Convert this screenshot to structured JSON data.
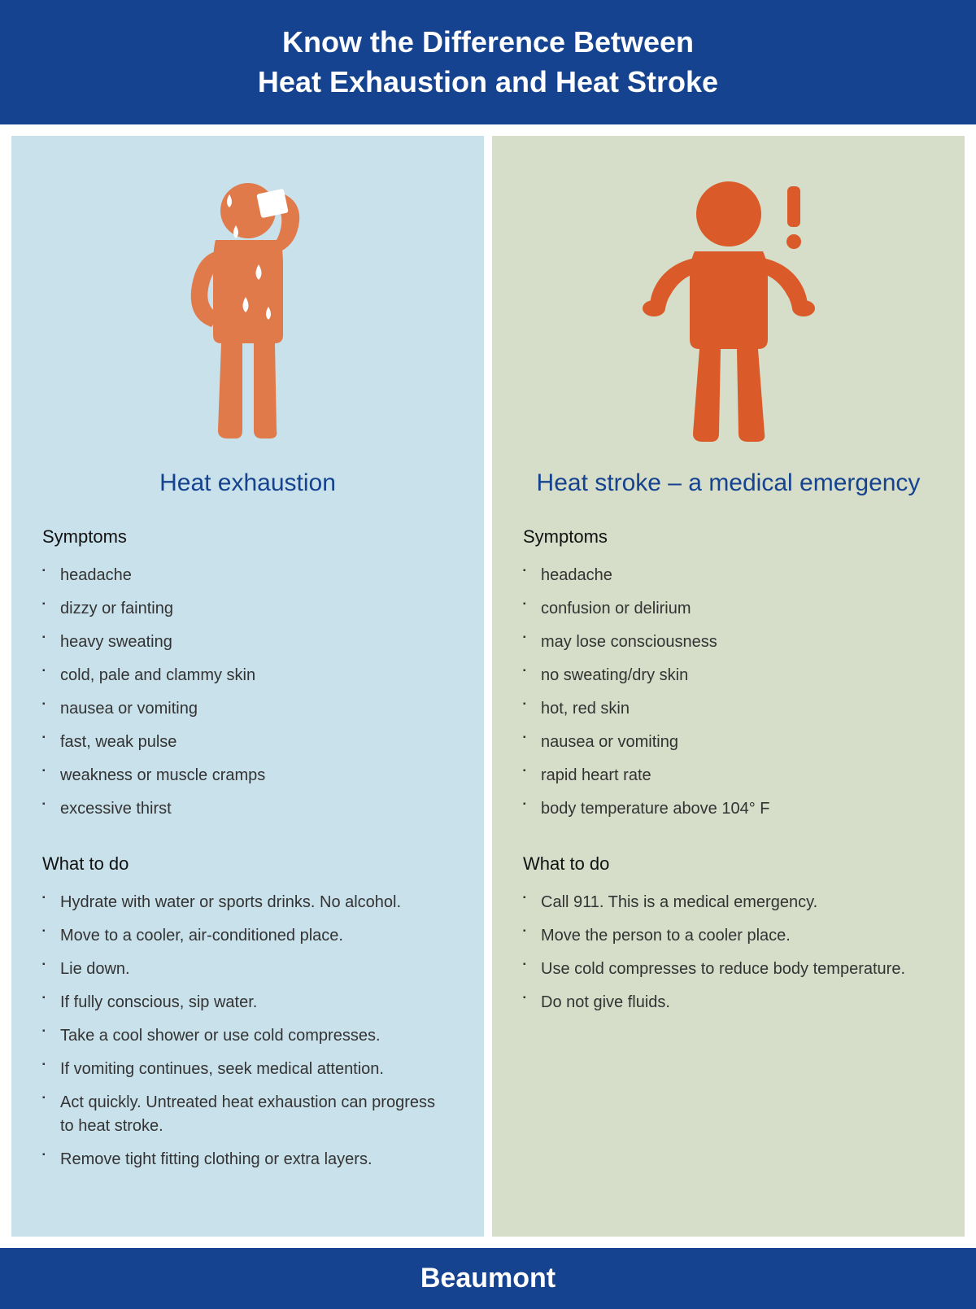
{
  "header": {
    "line1": "Know the Difference Between",
    "line2": "Heat Exhaustion and Heat Stroke"
  },
  "colors": {
    "header_bg": "#15438f",
    "header_text": "#ffffff",
    "left_bg": "#c9e1ea",
    "right_bg": "#d6dec9",
    "title_text": "#15438f",
    "figure_fill": "#e07a4a",
    "right_figure_fill": "#da5b29",
    "sweat_fill": "#ffffff"
  },
  "left": {
    "title": "Heat exhaustion",
    "symptoms_head": "Symptoms",
    "symptoms": [
      "headache",
      "dizzy or fainting",
      "heavy sweating",
      "cold, pale and clammy skin",
      "nausea or vomiting",
      "fast, weak pulse",
      "weakness or muscle cramps",
      "excessive thirst"
    ],
    "action_head": "What to do",
    "actions": [
      "Hydrate with water or sports drinks. No alcohol.",
      "Move to a cooler, air-conditioned place.",
      "Lie down.",
      "If fully conscious, sip water.",
      "Take a cool shower or use cold compresses.",
      "If vomiting continues, seek medical attention.",
      "Act quickly. Untreated heat exhaustion can progress to heat stroke.",
      "Remove tight fitting clothing or extra layers."
    ]
  },
  "right": {
    "title": "Heat stroke – a medical emergency",
    "symptoms_head": "Symptoms",
    "symptoms": [
      "headache",
      "confusion or delirium",
      "may lose consciousness",
      "no sweating/dry skin",
      "hot, red skin",
      "nausea or vomiting",
      "rapid heart rate",
      "body temperature above 104° F"
    ],
    "action_head": "What to do",
    "actions": [
      "Call 911. This is a medical emergency.",
      "Move the person to a cooler place.",
      "Use cold compresses to reduce body temperature.",
      "Do not give fluids."
    ]
  },
  "footer": {
    "brand": "Beaumont"
  }
}
